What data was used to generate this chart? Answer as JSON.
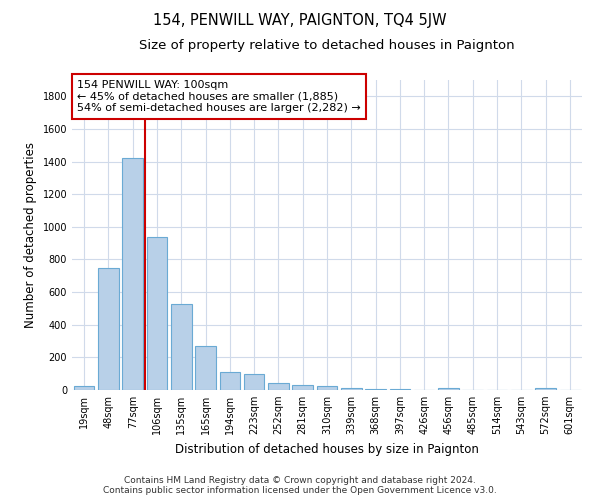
{
  "title": "154, PENWILL WAY, PAIGNTON, TQ4 5JW",
  "subtitle": "Size of property relative to detached houses in Paignton",
  "xlabel": "Distribution of detached houses by size in Paignton",
  "ylabel": "Number of detached properties",
  "categories": [
    "19sqm",
    "48sqm",
    "77sqm",
    "106sqm",
    "135sqm",
    "165sqm",
    "194sqm",
    "223sqm",
    "252sqm",
    "281sqm",
    "310sqm",
    "339sqm",
    "368sqm",
    "397sqm",
    "426sqm",
    "456sqm",
    "485sqm",
    "514sqm",
    "543sqm",
    "572sqm",
    "601sqm"
  ],
  "values": [
    25,
    745,
    1425,
    935,
    530,
    270,
    108,
    98,
    45,
    28,
    25,
    10,
    6,
    4,
    2,
    15,
    1,
    1,
    1,
    15,
    0
  ],
  "bar_color": "#b8d0e8",
  "bar_edge_color": "#6aaad4",
  "vline_color": "#cc0000",
  "vline_x_idx": 2.5,
  "annotation_text": "154 PENWILL WAY: 100sqm\n← 45% of detached houses are smaller (1,885)\n54% of semi-detached houses are larger (2,282) →",
  "annotation_box_color": "#cc0000",
  "ylim": [
    0,
    1900
  ],
  "yticks": [
    0,
    200,
    400,
    600,
    800,
    1000,
    1200,
    1400,
    1600,
    1800
  ],
  "grid_color": "#d0daea",
  "background_color": "#ffffff",
  "footer": "Contains HM Land Registry data © Crown copyright and database right 2024.\nContains public sector information licensed under the Open Government Licence v3.0.",
  "title_fontsize": 10.5,
  "subtitle_fontsize": 9.5,
  "xlabel_fontsize": 8.5,
  "ylabel_fontsize": 8.5,
  "tick_fontsize": 7,
  "annotation_fontsize": 8,
  "footer_fontsize": 6.5
}
